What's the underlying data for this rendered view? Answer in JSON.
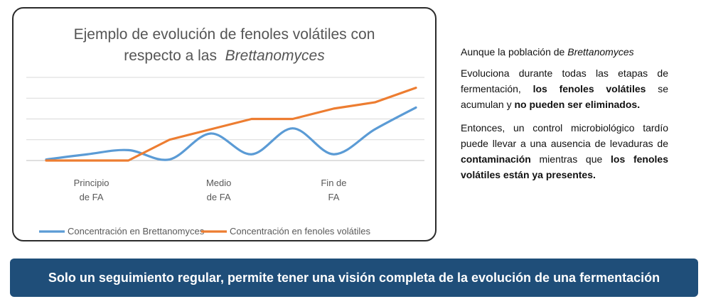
{
  "chart_data": {
    "type": "line",
    "title_line1": "Ejemplo de evolución de fenoles volátiles con",
    "title_line2_prefix": "respecto a las",
    "title_line2_italic": "Brettanomyces",
    "x": [
      0,
      1,
      2,
      3,
      4,
      5,
      6,
      7,
      8,
      9
    ],
    "x_labels": [
      {
        "pos": 1.1,
        "lines": [
          "Principio",
          "de FA"
        ]
      },
      {
        "pos": 4.2,
        "lines": [
          "Medio",
          "de FA"
        ]
      },
      {
        "pos": 7.0,
        "lines": [
          "Fin de",
          "FA"
        ]
      }
    ],
    "ylim": [
      0,
      4
    ],
    "grid": true,
    "legend_placement": "bottom",
    "series": [
      {
        "name": "Concentración en Brettanomyces",
        "color": "#5b9bd5",
        "values": [
          0.05,
          0.3,
          0.5,
          0.05,
          1.3,
          0.3,
          1.55,
          0.3,
          1.5,
          2.55
        ],
        "smooth": true
      },
      {
        "name": "Concentración en fenoles volátiles",
        "color": "#ed7d31",
        "values": [
          0,
          0,
          0,
          1.0,
          1.5,
          2.0,
          2.0,
          2.5,
          2.8,
          3.5
        ],
        "smooth": false
      }
    ]
  },
  "explanation": {
    "p1_prefix": "Aunque la población de ",
    "p1_italic": "Brettanomyces",
    "p2_a": "Evoluciona durante todas las etapas de fermentación, ",
    "p2_b": "los fenoles volátiles",
    "p2_c": " se acumulan y ",
    "p2_d": "no pueden ser eliminados.",
    "p3_a": "Entonces, un control microbiológico tardío puede llevar a una ausencia de levaduras de ",
    "p3_b": "contaminación",
    "p3_c": " mientras que ",
    "p3_d": "los fenoles volátiles están ya presentes."
  },
  "banner": {
    "text": "Solo un seguimiento regular, permite tener una visión completa de la evolución de una fermentación",
    "color": "#1f4e79"
  }
}
